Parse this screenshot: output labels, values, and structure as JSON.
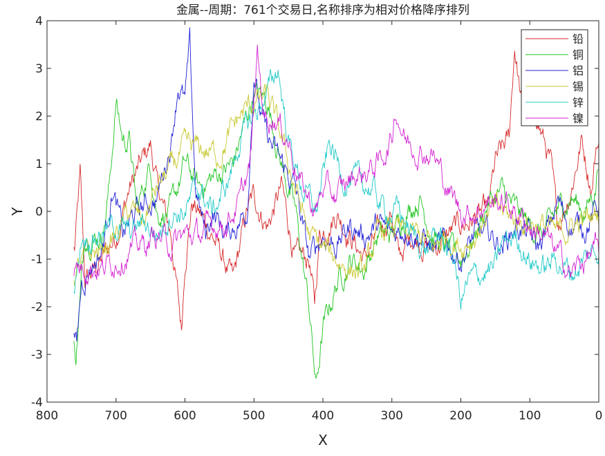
{
  "chart_data": {
    "type": "line",
    "title": "金属--周期：761个交易日,名称排序为相对价格降序排列",
    "xlabel": "X",
    "ylabel": "Y",
    "xlim": [
      800,
      0
    ],
    "ylim": [
      -4,
      4
    ],
    "x_reversed": true,
    "xticks": [
      "800",
      "700",
      "600",
      "500",
      "400",
      "300",
      "200",
      "100",
      "0"
    ],
    "yticks": [
      "4",
      "3",
      "2",
      "1",
      "0",
      "-1",
      "-2",
      "-3",
      "-4"
    ],
    "grid": false,
    "legend_position": "top-right",
    "series": [
      {
        "name": "铅",
        "color": "#d62728",
        "points": [
          [
            760,
            -0.8
          ],
          [
            752,
            0.7
          ],
          [
            745,
            -1.5
          ],
          [
            720,
            -1
          ],
          [
            700,
            -0.5
          ],
          [
            680,
            0.5
          ],
          [
            650,
            1.4
          ],
          [
            640,
            0.5
          ],
          [
            620,
            -0.5
          ],
          [
            605,
            -2.5
          ],
          [
            600,
            -1
          ],
          [
            590,
            0.2
          ],
          [
            560,
            -0.5
          ],
          [
            530,
            -1.5
          ],
          [
            510,
            0
          ],
          [
            500,
            0.3
          ],
          [
            480,
            -0.3
          ],
          [
            460,
            0.5
          ],
          [
            440,
            -1
          ],
          [
            420,
            -1
          ],
          [
            412,
            -2
          ],
          [
            405,
            -0.5
          ],
          [
            380,
            0
          ],
          [
            360,
            -0.5
          ],
          [
            340,
            -1
          ],
          [
            320,
            -0.5
          ],
          [
            300,
            0
          ],
          [
            290,
            -1
          ],
          [
            270,
            -0.5
          ],
          [
            240,
            -0.8
          ],
          [
            220,
            -0.5
          ],
          [
            200,
            -0.3
          ],
          [
            160,
            0
          ],
          [
            150,
            1
          ],
          [
            130,
            1.5
          ],
          [
            122,
            3.5
          ],
          [
            110,
            2
          ],
          [
            90,
            2
          ],
          [
            70,
            1
          ],
          [
            60,
            -0.3
          ],
          [
            40,
            0.5
          ],
          [
            25,
            1.5
          ],
          [
            10,
            0.5
          ],
          [
            3,
            1.5
          ],
          [
            0,
            1.4
          ]
        ]
      },
      {
        "name": "铜",
        "color": "#1fc41f",
        "points": [
          [
            760,
            -2.8
          ],
          [
            758,
            -3
          ],
          [
            745,
            -0.5
          ],
          [
            720,
            -0.5
          ],
          [
            710,
            0.5
          ],
          [
            700,
            2.3
          ],
          [
            690,
            1.5
          ],
          [
            680,
            1.5
          ],
          [
            670,
            0
          ],
          [
            650,
            1
          ],
          [
            640,
            0
          ],
          [
            620,
            0
          ],
          [
            600,
            1
          ],
          [
            580,
            0.5
          ],
          [
            560,
            0.7
          ],
          [
            530,
            1
          ],
          [
            500,
            2.5
          ],
          [
            480,
            2.3
          ],
          [
            460,
            1
          ],
          [
            440,
            0
          ],
          [
            420,
            -2
          ],
          [
            410,
            -3.7
          ],
          [
            400,
            -2.5
          ],
          [
            380,
            -1.5
          ],
          [
            360,
            -1
          ],
          [
            340,
            -1.2
          ],
          [
            320,
            -0.5
          ],
          [
            300,
            -0.5
          ],
          [
            280,
            0
          ],
          [
            260,
            0.3
          ],
          [
            240,
            -0.5
          ],
          [
            220,
            -0.8
          ],
          [
            200,
            -1
          ],
          [
            180,
            -0.5
          ],
          [
            160,
            0.2
          ],
          [
            140,
            0.4
          ],
          [
            120,
            0
          ],
          [
            100,
            -0.3
          ],
          [
            80,
            -0.5
          ],
          [
            60,
            0
          ],
          [
            40,
            0.3
          ],
          [
            20,
            0
          ],
          [
            5,
            0.5
          ],
          [
            0,
            1.2
          ]
        ]
      },
      {
        "name": "铝",
        "color": "#1f1fd6",
        "points": [
          [
            760,
            -2.7
          ],
          [
            757,
            -2.9
          ],
          [
            750,
            -1.5
          ],
          [
            740,
            -1.2
          ],
          [
            720,
            -0.8
          ],
          [
            705,
            0.5
          ],
          [
            690,
            -0.5
          ],
          [
            670,
            0
          ],
          [
            640,
            0.3
          ],
          [
            620,
            1.5
          ],
          [
            610,
            2.7
          ],
          [
            600,
            2.3
          ],
          [
            593,
            3.4
          ],
          [
            585,
            0.5
          ],
          [
            570,
            -0.5
          ],
          [
            560,
            0
          ],
          [
            540,
            -0.5
          ],
          [
            510,
            0
          ],
          [
            500,
            3
          ],
          [
            490,
            2
          ],
          [
            480,
            1.5
          ],
          [
            460,
            1
          ],
          [
            440,
            0.5
          ],
          [
            420,
            -1
          ],
          [
            400,
            -0.5
          ],
          [
            380,
            -0.7
          ],
          [
            360,
            -0.3
          ],
          [
            340,
            -0.5
          ],
          [
            320,
            -0.3
          ],
          [
            300,
            -0.5
          ],
          [
            280,
            -0.3
          ],
          [
            260,
            -0.5
          ],
          [
            240,
            -0.8
          ],
          [
            220,
            -0.7
          ],
          [
            200,
            -1
          ],
          [
            180,
            -0.5
          ],
          [
            160,
            -0.5
          ],
          [
            140,
            -0.7
          ],
          [
            120,
            -0.3
          ],
          [
            100,
            -0.5
          ],
          [
            90,
            -0.8
          ],
          [
            70,
            -0.3
          ],
          [
            60,
            0.2
          ],
          [
            40,
            -0.3
          ],
          [
            20,
            -0.3
          ],
          [
            0,
            0.1
          ]
        ]
      },
      {
        "name": "锡",
        "color": "#c8c832",
        "points": [
          [
            760,
            -1.3
          ],
          [
            745,
            -1
          ],
          [
            720,
            -0.8
          ],
          [
            700,
            -0.5
          ],
          [
            680,
            0
          ],
          [
            660,
            -0.2
          ],
          [
            640,
            0.5
          ],
          [
            600,
            1.3
          ],
          [
            580,
            1.3
          ],
          [
            550,
            1.2
          ],
          [
            520,
            2
          ],
          [
            500,
            2.3
          ],
          [
            480,
            2.4
          ],
          [
            460,
            1.5
          ],
          [
            440,
            0.5
          ],
          [
            420,
            -0.5
          ],
          [
            400,
            -0.8
          ],
          [
            380,
            -1
          ],
          [
            360,
            -1.2
          ],
          [
            340,
            -1.3
          ],
          [
            320,
            -0.5
          ],
          [
            300,
            -0.3
          ],
          [
            280,
            -0.5
          ],
          [
            260,
            -0.5
          ],
          [
            240,
            -0.8
          ],
          [
            220,
            -0.5
          ],
          [
            200,
            -0.7
          ],
          [
            180,
            -0.5
          ],
          [
            160,
            0
          ],
          [
            140,
            0
          ],
          [
            120,
            -0.2
          ],
          [
            100,
            -0.2
          ],
          [
            80,
            -0.3
          ],
          [
            60,
            -0.5
          ],
          [
            40,
            -0.3
          ],
          [
            20,
            -0.2
          ],
          [
            0,
            0
          ]
        ]
      },
      {
        "name": "锌",
        "color": "#1fc8c8",
        "points": [
          [
            760,
            -1.7
          ],
          [
            750,
            -0.5
          ],
          [
            730,
            -0.5
          ],
          [
            700,
            -0.3
          ],
          [
            680,
            -0.5
          ],
          [
            660,
            -0.2
          ],
          [
            640,
            -0.5
          ],
          [
            620,
            0
          ],
          [
            600,
            0
          ],
          [
            580,
            0.5
          ],
          [
            560,
            0
          ],
          [
            540,
            0.5
          ],
          [
            520,
            1.5
          ],
          [
            500,
            2
          ],
          [
            480,
            2.5
          ],
          [
            465,
            3
          ],
          [
            450,
            1.5
          ],
          [
            430,
            0.5
          ],
          [
            410,
            0
          ],
          [
            400,
            0.7
          ],
          [
            390,
            1.4
          ],
          [
            370,
            0.7
          ],
          [
            350,
            0.6
          ],
          [
            330,
            0.5
          ],
          [
            310,
            0
          ],
          [
            290,
            0
          ],
          [
            270,
            -0.5
          ],
          [
            250,
            -0.8
          ],
          [
            230,
            -0.5
          ],
          [
            210,
            -1
          ],
          [
            200,
            -1.9
          ],
          [
            190,
            -1.5
          ],
          [
            170,
            -1.3
          ],
          [
            150,
            -1.2
          ],
          [
            140,
            -0.7
          ],
          [
            120,
            -0.5
          ],
          [
            100,
            -1
          ],
          [
            80,
            -1.2
          ],
          [
            60,
            -1
          ],
          [
            40,
            -1.3
          ],
          [
            20,
            -1
          ],
          [
            5,
            -0.8
          ],
          [
            0,
            -0.8
          ]
        ]
      },
      {
        "name": "镍",
        "color": "#d21fd2",
        "points": [
          [
            760,
            -1.2
          ],
          [
            740,
            -1.1
          ],
          [
            720,
            -1.2
          ],
          [
            700,
            -1
          ],
          [
            680,
            -0.8
          ],
          [
            660,
            -0.7
          ],
          [
            640,
            -0.5
          ],
          [
            620,
            -0.7
          ],
          [
            600,
            -0.5
          ],
          [
            580,
            -0.5
          ],
          [
            560,
            -0.3
          ],
          [
            540,
            -0.2
          ],
          [
            520,
            0.2
          ],
          [
            505,
            1
          ],
          [
            495,
            3.3
          ],
          [
            485,
            2
          ],
          [
            470,
            2
          ],
          [
            450,
            1.5
          ],
          [
            430,
            0.5
          ],
          [
            410,
            0
          ],
          [
            400,
            0.5
          ],
          [
            380,
            0.3
          ],
          [
            360,
            0.7
          ],
          [
            340,
            0.8
          ],
          [
            320,
            1
          ],
          [
            300,
            1.5
          ],
          [
            295,
            2.2
          ],
          [
            280,
            1.5
          ],
          [
            260,
            1.3
          ],
          [
            240,
            1.2
          ],
          [
            220,
            0.5
          ],
          [
            200,
            0
          ],
          [
            180,
            0
          ],
          [
            160,
            0.2
          ],
          [
            140,
            0.2
          ],
          [
            120,
            0
          ],
          [
            100,
            -0.3
          ],
          [
            80,
            -0.5
          ],
          [
            60,
            -0.9
          ],
          [
            40,
            -1.3
          ],
          [
            20,
            -1
          ],
          [
            5,
            -0.8
          ],
          [
            0,
            -1
          ]
        ]
      }
    ]
  }
}
